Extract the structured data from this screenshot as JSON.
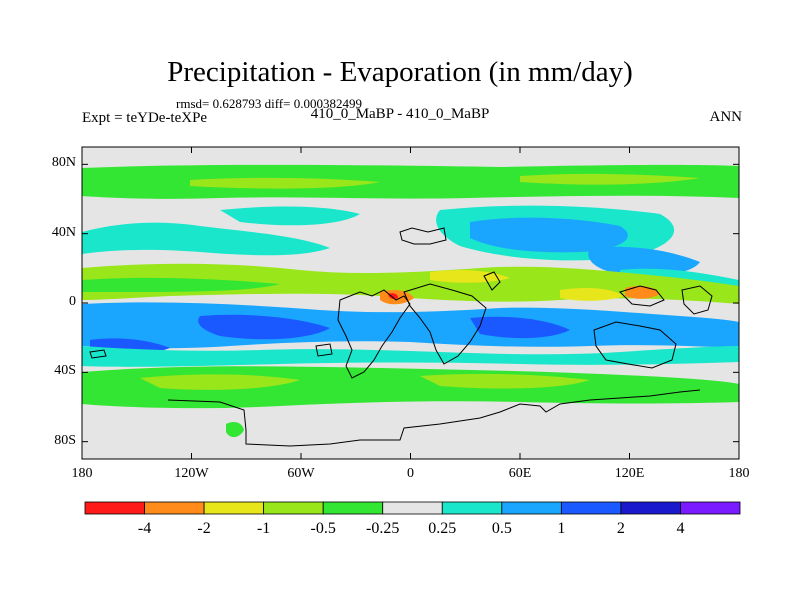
{
  "title": "Precipitation - Evaporation (in mm/day)",
  "stats": "rmsd= 0.628793 diff= 0.000382499",
  "expt": "Expt = teYDe-teXPe",
  "case": "410_0_MaBP - 410_0_MaBP",
  "season": "ANN",
  "map": {
    "lat_ticks": [
      {
        "value": 80,
        "label": "80N"
      },
      {
        "value": 40,
        "label": "40N"
      },
      {
        "value": 0,
        "label": "0"
      },
      {
        "value": -40,
        "label": "40S"
      },
      {
        "value": -80,
        "label": "80S"
      }
    ],
    "lon_ticks": [
      {
        "value": -180,
        "label": "180"
      },
      {
        "value": -120,
        "label": "120W"
      },
      {
        "value": -60,
        "label": "60W"
      },
      {
        "value": 0,
        "label": "0"
      },
      {
        "value": 60,
        "label": "60E"
      },
      {
        "value": 120,
        "label": "120E"
      },
      {
        "value": 180,
        "label": "180"
      }
    ],
    "lat_range": [
      -90,
      90
    ],
    "lon_range": [
      -180,
      180
    ],
    "missing_color": "#e5e5e5"
  },
  "colorbar": {
    "colors": [
      "#ff1a1a",
      "#ff8c1a",
      "#e6e61a",
      "#99e61a",
      "#33e633",
      "#e5e5e5",
      "#1ae6cc",
      "#1aa6ff",
      "#1a59ff",
      "#1a1acc",
      "#7a1aff"
    ],
    "labels": [
      "-4",
      "-2",
      "-1",
      "-0.5",
      "-0.25",
      "0.25",
      "0.5",
      "1",
      "2",
      "4"
    ]
  }
}
